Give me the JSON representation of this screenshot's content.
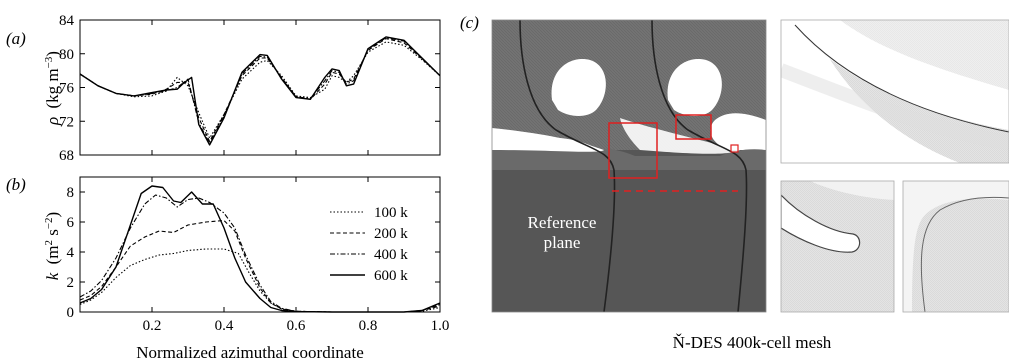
{
  "colors": {
    "mesh_dark": "#555555",
    "mesh_mid": "#7a7a7a",
    "mesh_light": "#d9d9d9",
    "highlight": "#e02020"
  },
  "panel_labels": {
    "a": "(a)",
    "b": "(b)",
    "c": "(c)"
  },
  "mesh_panel": {
    "reference_label_line1": "Reference",
    "reference_label_line2": "plane",
    "caption": "Ň-DES 400k-cell mesh"
  },
  "chart_data": [
    {
      "id": "a",
      "type": "line",
      "xlabel": "",
      "ylabel_sym": "ρ",
      "ylabel_unit": "(kg m",
      "ylabel_exp": "−3",
      "ylim": [
        68,
        84
      ],
      "xlim": [
        0,
        1
      ],
      "yticks": [
        68,
        72,
        76,
        80,
        84
      ],
      "xticks": [
        0.2,
        0.4,
        0.6,
        0.8,
        1.0
      ],
      "show_xtick_labels": false,
      "series": [
        {
          "name": "100 k",
          "dash": "1.5,2",
          "x": [
            0,
            0.05,
            0.1,
            0.15,
            0.2,
            0.24,
            0.27,
            0.3,
            0.33,
            0.36,
            0.4,
            0.45,
            0.5,
            0.52,
            0.56,
            0.6,
            0.64,
            0.68,
            0.7,
            0.72,
            0.74,
            0.76,
            0.8,
            0.85,
            0.9,
            0.95,
            1.0
          ],
          "y": [
            77.6,
            76.2,
            75.3,
            74.9,
            75.0,
            75.6,
            77.2,
            76.2,
            73.0,
            70.0,
            72.8,
            77.0,
            79.0,
            79.2,
            77.4,
            75.0,
            74.8,
            75.8,
            77.4,
            77.2,
            76.6,
            77.4,
            80.2,
            81.4,
            81.0,
            79.3,
            77.4
          ]
        },
        {
          "name": "200 k",
          "dash": "4,2.5",
          "x": [
            0,
            0.05,
            0.1,
            0.15,
            0.2,
            0.24,
            0.27,
            0.3,
            0.33,
            0.36,
            0.4,
            0.45,
            0.5,
            0.52,
            0.56,
            0.6,
            0.64,
            0.68,
            0.7,
            0.72,
            0.74,
            0.76,
            0.8,
            0.85,
            0.9,
            0.95,
            1.0
          ],
          "y": [
            77.6,
            76.2,
            75.3,
            75.0,
            75.2,
            75.8,
            76.6,
            76.6,
            72.4,
            69.6,
            72.8,
            77.4,
            79.5,
            79.5,
            77.2,
            74.9,
            74.6,
            76.4,
            77.8,
            77.6,
            76.6,
            77.0,
            80.4,
            81.8,
            81.3,
            79.4,
            77.4
          ]
        },
        {
          "name": "400 k",
          "dash": "5,2,1.5,2",
          "x": [
            0,
            0.05,
            0.1,
            0.15,
            0.2,
            0.24,
            0.27,
            0.3,
            0.33,
            0.36,
            0.4,
            0.45,
            0.5,
            0.52,
            0.56,
            0.6,
            0.64,
            0.68,
            0.7,
            0.72,
            0.74,
            0.76,
            0.8,
            0.85,
            0.9,
            0.95,
            1.0
          ],
          "y": [
            77.6,
            76.2,
            75.3,
            75.0,
            75.3,
            75.6,
            76.0,
            77.0,
            71.8,
            69.4,
            72.6,
            77.6,
            79.7,
            79.6,
            77.1,
            74.9,
            74.7,
            76.8,
            78.0,
            77.8,
            76.4,
            76.8,
            80.5,
            81.9,
            81.5,
            79.5,
            77.4
          ]
        },
        {
          "name": "600 k",
          "dash": "",
          "x": [
            0,
            0.05,
            0.1,
            0.15,
            0.2,
            0.24,
            0.27,
            0.29,
            0.31,
            0.33,
            0.36,
            0.4,
            0.45,
            0.5,
            0.52,
            0.56,
            0.6,
            0.64,
            0.68,
            0.7,
            0.72,
            0.74,
            0.76,
            0.8,
            0.85,
            0.9,
            0.95,
            1.0
          ],
          "y": [
            77.6,
            76.2,
            75.3,
            75.0,
            75.4,
            75.7,
            75.8,
            76.6,
            77.2,
            71.6,
            69.2,
            72.4,
            77.8,
            79.9,
            79.8,
            77.0,
            74.8,
            74.6,
            77.2,
            78.2,
            78.0,
            76.2,
            76.4,
            80.6,
            82.0,
            81.6,
            79.5,
            77.4
          ]
        }
      ]
    },
    {
      "id": "b",
      "type": "line",
      "xlabel": "Normalized azimuthal coordinate",
      "ylabel_sym": "k",
      "ylabel_unit": "(m",
      "ylabel_exp": "2",
      "ylabel_unit2": " s",
      "ylabel_exp2": "−2",
      "ylim": [
        0,
        9
      ],
      "xlim": [
        0,
        1
      ],
      "yticks": [
        0,
        2,
        4,
        6,
        8
      ],
      "xticks": [
        0.2,
        0.4,
        0.6,
        0.8,
        1.0
      ],
      "xtick_labels": [
        "0.2",
        "0.4",
        "0.6",
        "0.8",
        "1.0"
      ],
      "legend": "top-right",
      "series": [
        {
          "name": "100 k",
          "dash": "1.5,2",
          "x": [
            0,
            0.03,
            0.06,
            0.1,
            0.14,
            0.18,
            0.22,
            0.26,
            0.3,
            0.35,
            0.4,
            0.44,
            0.47,
            0.5,
            0.53,
            0.56,
            0.6,
            0.7,
            0.8,
            0.9,
            0.95,
            1.0
          ],
          "y": [
            0.5,
            0.8,
            1.3,
            2.3,
            3.1,
            3.5,
            3.8,
            3.9,
            4.1,
            4.2,
            4.2,
            3.9,
            2.6,
            1.4,
            0.6,
            0.2,
            0.05,
            0.0,
            0.0,
            0.0,
            0.05,
            0.3
          ]
        },
        {
          "name": "200 k",
          "dash": "4,2.5",
          "x": [
            0,
            0.03,
            0.06,
            0.1,
            0.14,
            0.18,
            0.22,
            0.26,
            0.3,
            0.35,
            0.4,
            0.43,
            0.46,
            0.5,
            0.53,
            0.56,
            0.6,
            0.7,
            0.8,
            0.9,
            0.95,
            1.0
          ],
          "y": [
            0.8,
            1.1,
            1.7,
            3.0,
            4.4,
            5.0,
            5.4,
            5.3,
            5.8,
            6.0,
            6.1,
            5.4,
            3.6,
            1.6,
            0.6,
            0.2,
            0.05,
            0.0,
            0.0,
            0.0,
            0.1,
            0.4
          ]
        },
        {
          "name": "400 k",
          "dash": "5,2,1.5,2",
          "x": [
            0,
            0.03,
            0.06,
            0.1,
            0.14,
            0.18,
            0.21,
            0.24,
            0.27,
            0.3,
            0.33,
            0.36,
            0.4,
            0.43,
            0.46,
            0.5,
            0.53,
            0.56,
            0.6,
            0.7,
            0.8,
            0.9,
            0.95,
            1.0
          ],
          "y": [
            1.0,
            1.4,
            2.1,
            3.6,
            5.6,
            7.2,
            7.8,
            7.6,
            7.0,
            7.5,
            7.6,
            7.3,
            6.6,
            5.6,
            3.8,
            1.8,
            0.7,
            0.25,
            0.05,
            0.0,
            0.0,
            0.0,
            0.1,
            0.5
          ]
        },
        {
          "name": "600 k",
          "dash": "",
          "x": [
            0,
            0.03,
            0.06,
            0.1,
            0.14,
            0.17,
            0.2,
            0.23,
            0.26,
            0.28,
            0.31,
            0.34,
            0.37,
            0.4,
            0.43,
            0.46,
            0.5,
            0.53,
            0.56,
            0.6,
            0.7,
            0.8,
            0.9,
            0.95,
            1.0
          ],
          "y": [
            0.6,
            0.9,
            1.5,
            3.0,
            5.8,
            7.9,
            8.4,
            8.3,
            7.4,
            7.3,
            8.0,
            7.2,
            7.2,
            5.6,
            3.6,
            2.0,
            0.9,
            0.3,
            0.1,
            0.03,
            0.0,
            0.0,
            0.0,
            0.1,
            0.6
          ]
        }
      ]
    }
  ]
}
